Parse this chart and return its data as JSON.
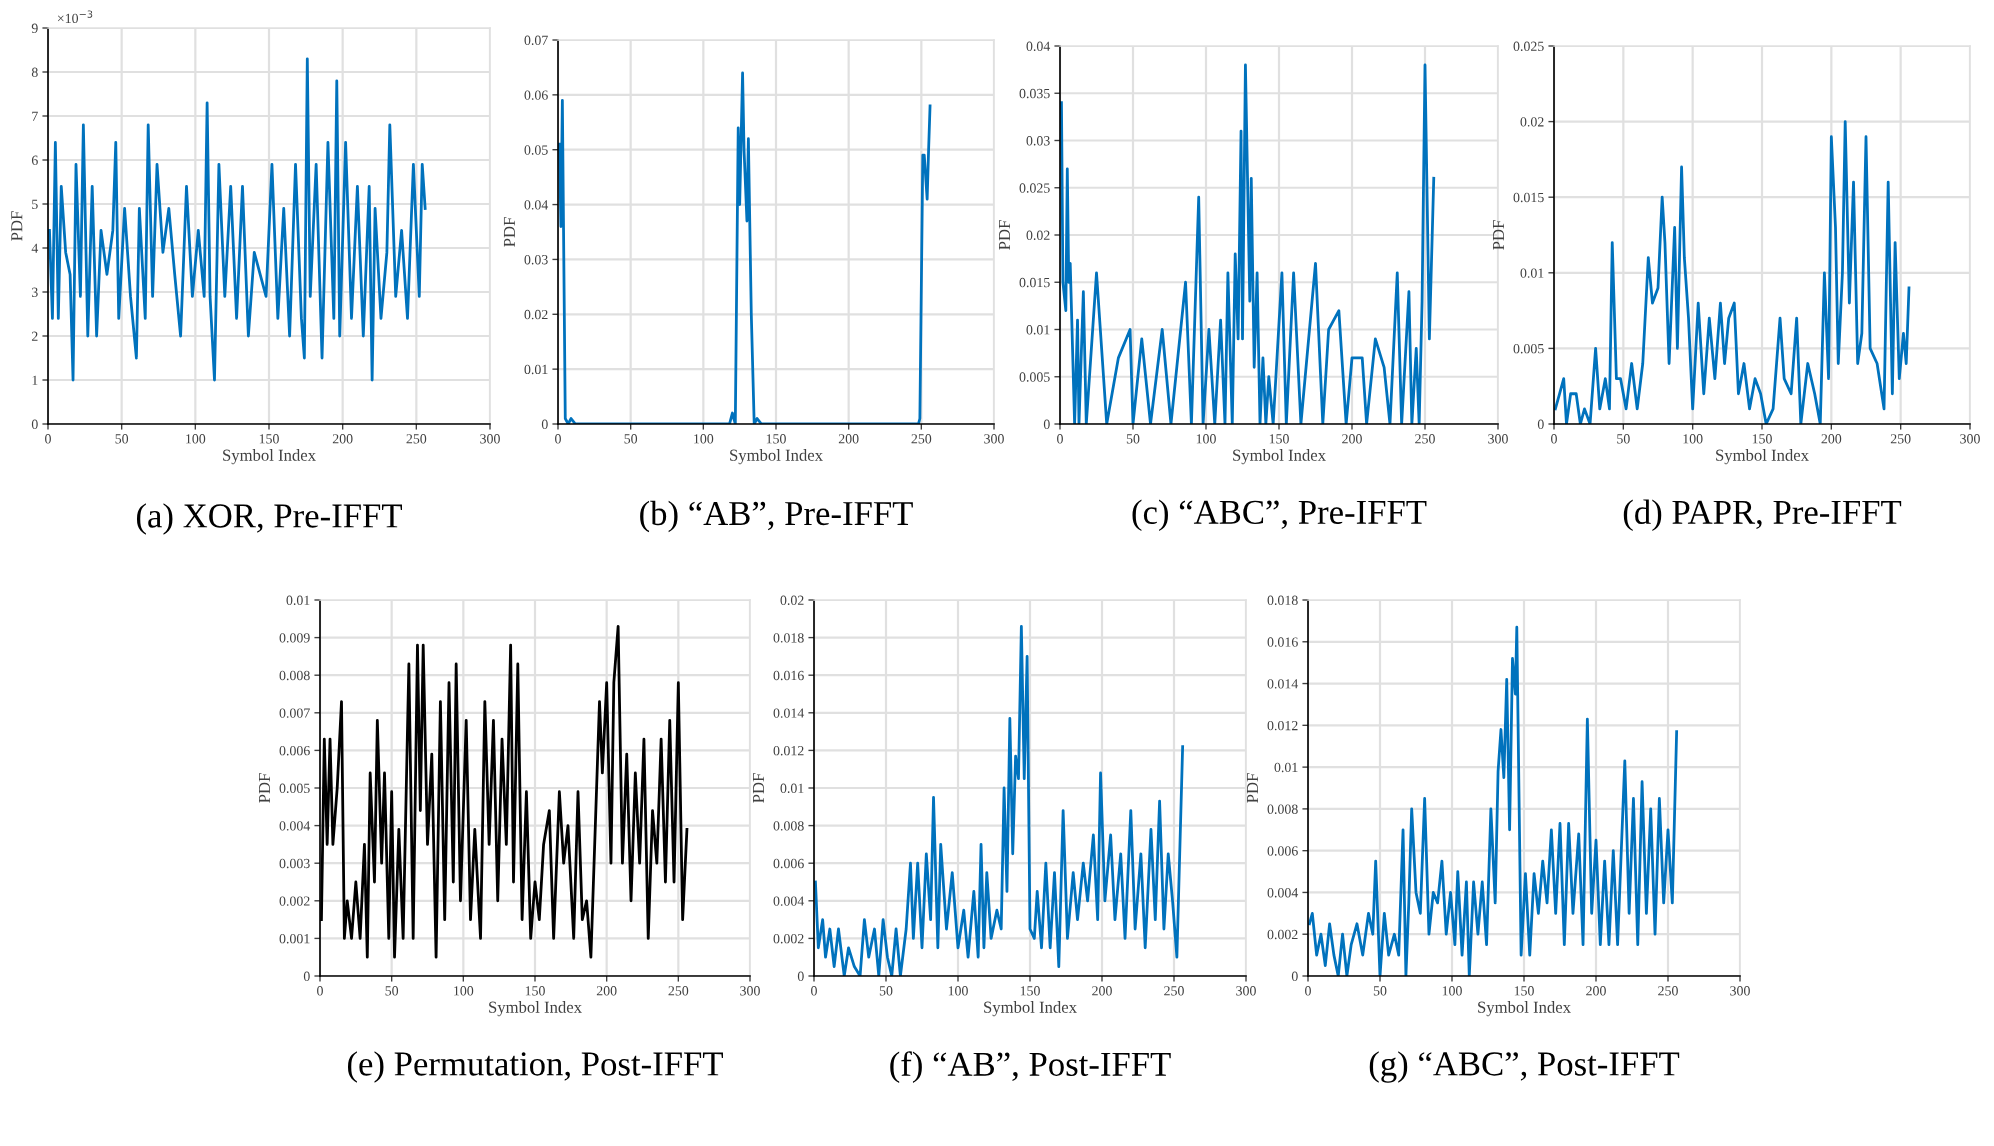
{
  "chart_data": [
    {
      "type": "line",
      "title": "(a) XOR, Pre-IFFT",
      "xlabel": "Symbol Index",
      "ylabel": "PDF",
      "annotations": [
        "×10$^{−3}$"
      ],
      "color": "#0072bd",
      "grid": true,
      "marker": "none",
      "line_style": "solid",
      "xlim": [
        0,
        300
      ],
      "xticks": [
        0,
        50,
        100,
        150,
        200,
        250,
        300
      ],
      "ylim": [
        0,
        9
      ],
      "yticks": [
        0,
        1,
        2,
        3,
        4,
        5,
        6,
        7,
        8,
        9
      ],
      "x": [
        1,
        3,
        5,
        7,
        9,
        12,
        15,
        17,
        19,
        22,
        24,
        27,
        30,
        33,
        36,
        40,
        44,
        46,
        48,
        52,
        56,
        60,
        62,
        66,
        68,
        71,
        74,
        78,
        82,
        86,
        90,
        94,
        98,
        102,
        106,
        108,
        110,
        113,
        116,
        120,
        124,
        128,
        132,
        136,
        140,
        144,
        148,
        152,
        156,
        160,
        164,
        168,
        172,
        174,
        176,
        178,
        182,
        186,
        190,
        194,
        196,
        198,
        202,
        206,
        210,
        214,
        218,
        220,
        222,
        226,
        230,
        232,
        236,
        240,
        244,
        248,
        252,
        254,
        256
      ],
      "values": [
        4.4,
        2.4,
        6.4,
        2.4,
        5.4,
        3.9,
        3.4,
        1.0,
        5.9,
        2.9,
        6.8,
        2.0,
        5.4,
        2.0,
        4.4,
        3.4,
        4.4,
        6.4,
        2.4,
        4.9,
        2.9,
        1.5,
        4.9,
        2.4,
        6.8,
        2.9,
        5.9,
        3.9,
        4.9,
        3.4,
        2.0,
        5.4,
        2.9,
        4.4,
        2.9,
        7.3,
        2.9,
        1.0,
        5.9,
        2.9,
        5.4,
        2.4,
        5.4,
        2.0,
        3.9,
        3.4,
        2.9,
        5.9,
        2.4,
        4.9,
        2.0,
        5.9,
        2.4,
        1.5,
        8.3,
        2.9,
        5.9,
        1.5,
        6.4,
        2.4,
        7.8,
        2.0,
        6.4,
        2.4,
        5.4,
        2.0,
        5.4,
        1.0,
        4.9,
        2.4,
        3.9,
        6.8,
        2.9,
        4.4,
        2.4,
        5.9,
        2.9,
        5.9,
        4.9
      ]
    },
    {
      "type": "line",
      "title": "(b) “AB”, Pre-IFFT",
      "xlabel": "Symbol Index",
      "ylabel": "PDF",
      "color": "#0072bd",
      "grid": true,
      "marker": "none",
      "line_style": "solid",
      "xlim": [
        0,
        300
      ],
      "xticks": [
        0,
        50,
        100,
        150,
        200,
        250,
        300
      ],
      "ylim": [
        0,
        0.07
      ],
      "yticks": [
        0,
        0.01,
        0.02,
        0.03,
        0.04,
        0.05,
        0.06,
        0.07
      ],
      "x": [
        1,
        2,
        3,
        4,
        5,
        7,
        9,
        12,
        118,
        120,
        122,
        124,
        125,
        127,
        128,
        130,
        131,
        133,
        135,
        137,
        140,
        248,
        249,
        251,
        252,
        254,
        255,
        256
      ],
      "values": [
        0.051,
        0.036,
        0.059,
        0.03,
        0.001,
        0,
        0.001,
        0,
        0,
        0.002,
        0,
        0.054,
        0.04,
        0.064,
        0.05,
        0.037,
        0.052,
        0.02,
        0,
        0.001,
        0,
        0,
        0.001,
        0.049,
        0.049,
        0.041,
        0.05,
        0.058
      ]
    },
    {
      "type": "line",
      "title": "(c) “ABC”, Pre-IFFT",
      "xlabel": "Symbol Index",
      "ylabel": "PDF",
      "color": "#0072bd",
      "grid": true,
      "marker": "none",
      "line_style": "solid",
      "xlim": [
        0,
        300
      ],
      "xticks": [
        0,
        50,
        100,
        150,
        200,
        250,
        300
      ],
      "ylim": [
        0,
        0.04
      ],
      "yticks": [
        0,
        0.005,
        0.01,
        0.015,
        0.02,
        0.025,
        0.03,
        0.035,
        0.04
      ],
      "x": [
        1,
        2,
        4,
        5,
        6,
        7,
        10,
        12,
        13,
        16,
        18,
        25,
        32,
        40,
        48,
        50,
        56,
        62,
        70,
        76,
        86,
        90,
        95,
        98,
        102,
        106,
        110,
        113,
        115,
        118,
        120,
        122,
        124,
        125,
        127,
        130,
        131,
        133,
        135,
        137,
        139,
        141,
        143,
        146,
        152,
        155,
        160,
        165,
        175,
        180,
        184,
        191,
        196,
        200,
        207,
        210,
        216,
        222,
        226,
        231,
        234,
        239,
        241,
        244,
        246,
        248,
        250,
        253,
        256
      ],
      "values": [
        0.034,
        0.015,
        0.012,
        0.027,
        0.015,
        0.017,
        0,
        0.011,
        0,
        0.014,
        0,
        0.016,
        0,
        0.007,
        0.01,
        0,
        0.009,
        0,
        0.01,
        0,
        0.015,
        0,
        0.024,
        0,
        0.01,
        0,
        0.011,
        0,
        0.016,
        0,
        0.018,
        0.009,
        0.031,
        0.009,
        0.038,
        0.013,
        0.026,
        0.006,
        0.016,
        0,
        0.007,
        0,
        0.005,
        0,
        0.016,
        0,
        0.016,
        0,
        0.017,
        0,
        0.01,
        0.012,
        0,
        0.007,
        0.007,
        0,
        0.009,
        0.006,
        0,
        0.016,
        0,
        0.014,
        0,
        0.008,
        0,
        0.013,
        0.038,
        0.009,
        0.026
      ]
    },
    {
      "type": "line",
      "title": "(d) PAPR, Pre-IFFT",
      "xlabel": "Symbol Index",
      "ylabel": "PDF",
      "color": "#0072bd",
      "grid": true,
      "marker": "none",
      "line_style": "solid",
      "xlim": [
        0,
        300
      ],
      "xticks": [
        0,
        50,
        100,
        150,
        200,
        250,
        300
      ],
      "ylim": [
        0,
        0.025
      ],
      "yticks": [
        0,
        0.005,
        0.01,
        0.015,
        0.02,
        0.025
      ],
      "x": [
        1,
        4,
        7,
        9,
        12,
        16,
        19,
        22,
        26,
        30,
        33,
        37,
        40,
        42,
        45,
        48,
        52,
        56,
        60,
        64,
        68,
        71,
        75,
        78,
        80,
        83,
        87,
        89,
        92,
        94,
        97,
        100,
        104,
        108,
        112,
        116,
        120,
        123,
        126,
        130,
        133,
        137,
        141,
        145,
        149,
        153,
        158,
        163,
        166,
        171,
        175,
        178,
        183,
        188,
        192,
        195,
        198,
        200,
        203,
        205,
        208,
        210,
        213,
        216,
        219,
        222,
        225,
        228,
        233,
        238,
        241,
        244,
        246,
        249,
        252,
        254,
        256
      ],
      "values": [
        0.001,
        0.002,
        0.003,
        0,
        0.002,
        0.002,
        0,
        0.001,
        0,
        0.005,
        0.001,
        0.003,
        0.001,
        0.012,
        0.003,
        0.003,
        0.001,
        0.004,
        0.001,
        0.004,
        0.011,
        0.008,
        0.009,
        0.015,
        0.012,
        0.004,
        0.013,
        0.005,
        0.017,
        0.011,
        0.007,
        0.001,
        0.008,
        0.002,
        0.007,
        0.003,
        0.008,
        0.004,
        0.007,
        0.008,
        0.002,
        0.004,
        0.001,
        0.003,
        0.002,
        0,
        0.001,
        0.007,
        0.003,
        0.002,
        0.007,
        0,
        0.004,
        0.002,
        0,
        0.01,
        0.003,
        0.019,
        0.013,
        0.004,
        0.01,
        0.02,
        0.008,
        0.016,
        0.004,
        0.006,
        0.019,
        0.005,
        0.004,
        0.001,
        0.016,
        0.002,
        0.012,
        0.003,
        0.006,
        0.004,
        0.009
      ]
    },
    {
      "type": "line",
      "title": "(e) Permutation, Post-IFFT",
      "xlabel": "Symbol Index",
      "ylabel": "PDF",
      "color": "#000000",
      "grid": true,
      "marker": "none",
      "line_style": "solid",
      "xlim": [
        0,
        300
      ],
      "xticks": [
        0,
        50,
        100,
        150,
        200,
        250,
        300
      ],
      "ylim": [
        0,
        0.01
      ],
      "yticks": [
        0,
        0.001,
        0.002,
        0.003,
        0.004,
        0.005,
        0.006,
        0.007,
        0.008,
        0.009,
        0.01
      ],
      "x": [
        1,
        3,
        5,
        7,
        9,
        12,
        15,
        17,
        19,
        22,
        25,
        28,
        31,
        33,
        35,
        38,
        40,
        43,
        45,
        48,
        50,
        52,
        55,
        58,
        62,
        65,
        68,
        70,
        72,
        75,
        78,
        81,
        84,
        87,
        90,
        93,
        95,
        98,
        102,
        105,
        108,
        112,
        115,
        118,
        121,
        124,
        127,
        130,
        133,
        135,
        138,
        141,
        144,
        147,
        150,
        153,
        156,
        160,
        163,
        167,
        170,
        173,
        177,
        180,
        183,
        186,
        189,
        192,
        195,
        197,
        200,
        203,
        205,
        208,
        211,
        214,
        217,
        220,
        223,
        226,
        229,
        232,
        235,
        238,
        241,
        244,
        247,
        250,
        253,
        256
      ],
      "values": [
        0.0015,
        0.0063,
        0.0035,
        0.0063,
        0.0035,
        0.005,
        0.0073,
        0.001,
        0.002,
        0.001,
        0.0025,
        0.001,
        0.0035,
        0.0005,
        0.0054,
        0.0025,
        0.0068,
        0.003,
        0.0054,
        0.001,
        0.0049,
        0.0005,
        0.0039,
        0.001,
        0.0083,
        0.001,
        0.0088,
        0.0044,
        0.0088,
        0.0035,
        0.0059,
        0.0005,
        0.0073,
        0.0015,
        0.0078,
        0.0025,
        0.0083,
        0.002,
        0.0068,
        0.0015,
        0.0039,
        0.001,
        0.0073,
        0.0035,
        0.0068,
        0.002,
        0.0063,
        0.0035,
        0.0088,
        0.0025,
        0.0083,
        0.0015,
        0.0049,
        0.001,
        0.0025,
        0.0015,
        0.0035,
        0.0044,
        0.001,
        0.0049,
        0.003,
        0.004,
        0.001,
        0.0049,
        0.0015,
        0.002,
        0.0005,
        0.0039,
        0.0073,
        0.0054,
        0.0078,
        0.003,
        0.0078,
        0.0093,
        0.003,
        0.0059,
        0.002,
        0.0054,
        0.003,
        0.0063,
        0.001,
        0.0044,
        0.003,
        0.0063,
        0.0025,
        0.0068,
        0.0025,
        0.0078,
        0.0015,
        0.0039
      ]
    },
    {
      "type": "line",
      "title": "(f) “AB”, Post-IFFT",
      "xlabel": "Symbol Index",
      "ylabel": "PDF",
      "color": "#0072bd",
      "grid": true,
      "marker": "none",
      "line_style": "solid",
      "xlim": [
        0,
        300
      ],
      "xticks": [
        0,
        50,
        100,
        150,
        200,
        250,
        300
      ],
      "ylim": [
        0,
        0.02
      ],
      "yticks": [
        0,
        0.002,
        0.004,
        0.006,
        0.008,
        0.01,
        0.012,
        0.014,
        0.016,
        0.018,
        0.02
      ],
      "x": [
        1,
        3,
        6,
        8,
        11,
        14,
        17,
        21,
        24,
        28,
        32,
        35,
        38,
        42,
        45,
        48,
        51,
        54,
        57,
        60,
        64,
        67,
        69,
        72,
        75,
        78,
        81,
        83,
        86,
        88,
        92,
        96,
        100,
        104,
        107,
        111,
        114,
        116,
        118,
        120,
        123,
        127,
        130,
        132,
        134,
        136,
        138,
        140,
        142,
        144,
        146,
        148,
        150,
        153,
        155,
        158,
        161,
        164,
        167,
        170,
        173,
        176,
        180,
        183,
        187,
        190,
        194,
        197,
        199,
        202,
        206,
        209,
        213,
        216,
        220,
        223,
        227,
        230,
        234,
        237,
        240,
        243,
        246,
        249,
        252,
        256
      ],
      "values": [
        0.005,
        0.0015,
        0.003,
        0.001,
        0.0025,
        0.0005,
        0.0025,
        0,
        0.0015,
        0.0005,
        0,
        0.003,
        0.001,
        0.0025,
        0,
        0.003,
        0.001,
        0,
        0.0025,
        0,
        0.0025,
        0.006,
        0.002,
        0.006,
        0.0015,
        0.0065,
        0.003,
        0.0095,
        0.0015,
        0.007,
        0.0025,
        0.0055,
        0.0015,
        0.0035,
        0.001,
        0.0045,
        0.001,
        0.007,
        0.0015,
        0.0055,
        0.002,
        0.0035,
        0.0025,
        0.01,
        0.0045,
        0.0137,
        0.0065,
        0.0117,
        0.0105,
        0.0186,
        0.0105,
        0.017,
        0.0025,
        0.002,
        0.0045,
        0.0015,
        0.006,
        0.0015,
        0.0055,
        0.0005,
        0.0088,
        0.002,
        0.0055,
        0.003,
        0.006,
        0.004,
        0.0075,
        0.003,
        0.0108,
        0.004,
        0.0075,
        0.003,
        0.0065,
        0.002,
        0.0088,
        0.0025,
        0.0065,
        0.0015,
        0.0078,
        0.003,
        0.0093,
        0.0025,
        0.0065,
        0.004,
        0.001,
        0.0122
      ]
    },
    {
      "type": "line",
      "title": "(g) “ABC”, Post-IFFT",
      "xlabel": "Symbol Index",
      "ylabel": "PDF",
      "color": "#0072bd",
      "grid": true,
      "marker": "none",
      "line_style": "solid",
      "xlim": [
        0,
        300
      ],
      "xticks": [
        0,
        50,
        100,
        150,
        200,
        250,
        300
      ],
      "ylim": [
        0,
        0.018
      ],
      "yticks": [
        0,
        0.002,
        0.004,
        0.006,
        0.008,
        0.01,
        0.012,
        0.014,
        0.016,
        0.018
      ],
      "x": [
        1,
        3,
        6,
        9,
        12,
        15,
        18,
        21,
        24,
        27,
        30,
        34,
        38,
        42,
        45,
        47,
        50,
        53,
        56,
        60,
        63,
        66,
        68,
        70,
        72,
        75,
        78,
        81,
        84,
        87,
        90,
        93,
        96,
        99,
        102,
        104,
        107,
        110,
        112,
        115,
        118,
        121,
        124,
        127,
        130,
        132,
        134,
        136,
        138,
        140,
        142,
        144,
        145,
        148,
        151,
        154,
        157,
        160,
        163,
        166,
        169,
        172,
        175,
        178,
        181,
        184,
        188,
        191,
        194,
        197,
        200,
        203,
        206,
        209,
        212,
        215,
        220,
        223,
        226,
        229,
        232,
        235,
        238,
        241,
        244,
        247,
        250,
        253,
        256
      ],
      "values": [
        0.0025,
        0.003,
        0.001,
        0.002,
        0.0005,
        0.0025,
        0.001,
        0,
        0.002,
        0,
        0.0015,
        0.0025,
        0.001,
        0.003,
        0.002,
        0.0055,
        0,
        0.003,
        0.001,
        0.002,
        0.001,
        0.007,
        0,
        0.0035,
        0.008,
        0.004,
        0.003,
        0.0085,
        0.002,
        0.004,
        0.0035,
        0.0055,
        0.002,
        0.004,
        0.0015,
        0.005,
        0.001,
        0.0045,
        0,
        0.0045,
        0.002,
        0.0045,
        0.0015,
        0.008,
        0.0035,
        0.0098,
        0.0118,
        0.0095,
        0.0142,
        0.007,
        0.0152,
        0.0135,
        0.0167,
        0.001,
        0.0049,
        0.001,
        0.0049,
        0.003,
        0.0055,
        0.0035,
        0.007,
        0.003,
        0.0073,
        0.0015,
        0.0073,
        0.003,
        0.0068,
        0.0015,
        0.0123,
        0.003,
        0.0065,
        0.0015,
        0.0055,
        0.0015,
        0.006,
        0.0015,
        0.0103,
        0.003,
        0.0085,
        0.0015,
        0.0093,
        0.003,
        0.008,
        0.002,
        0.0085,
        0.0035,
        0.007,
        0.0035,
        0.0117
      ]
    }
  ]
}
